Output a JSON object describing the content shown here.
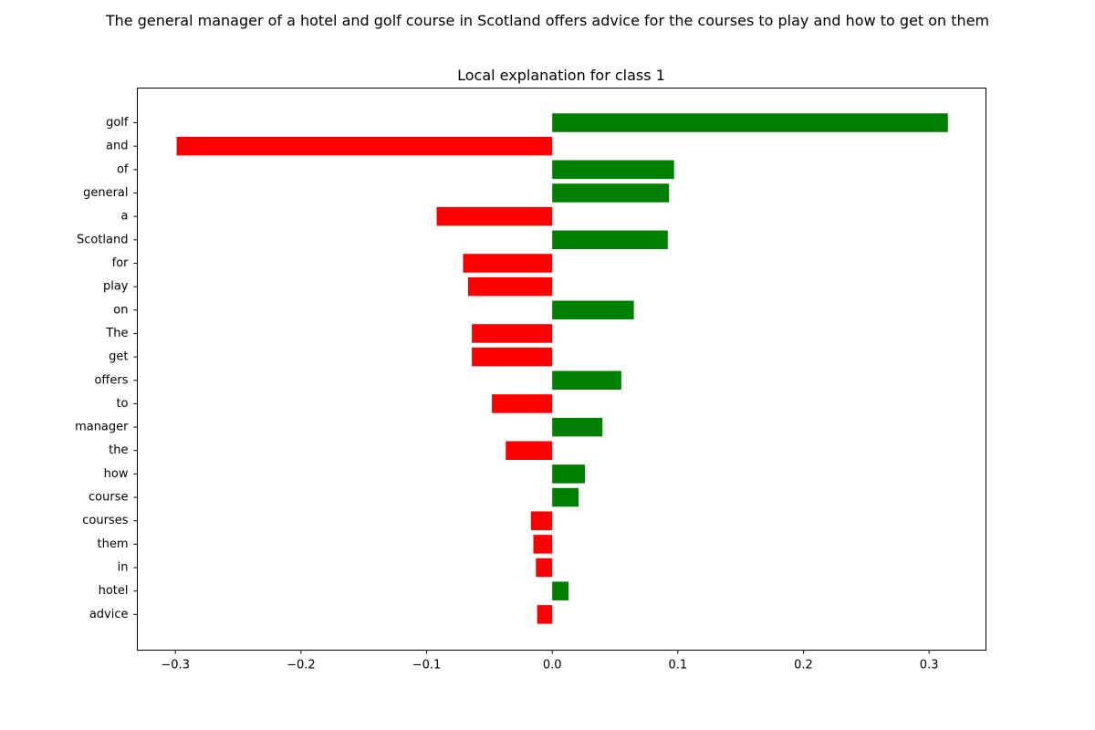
{
  "figure": {
    "suptitle": "The general manager of a hotel and golf course in Scotland offers advice for the courses to play and how to get on them"
  },
  "chart_data": {
    "type": "bar",
    "orientation": "horizontal",
    "title": "Local explanation for class 1",
    "xlabel": "",
    "ylabel": "",
    "categories": [
      "golf",
      "and",
      "of",
      "general",
      "a",
      "Scotland",
      "for",
      "play",
      "on",
      "The",
      "get",
      "offers",
      "to",
      "manager",
      "the",
      "how",
      "course",
      "courses",
      "them",
      "in",
      "hotel",
      "advice"
    ],
    "values": [
      0.315,
      -0.299,
      0.097,
      0.093,
      -0.092,
      0.092,
      -0.071,
      -0.067,
      0.065,
      -0.064,
      -0.064,
      0.055,
      -0.048,
      0.04,
      -0.037,
      0.026,
      0.021,
      -0.017,
      -0.015,
      -0.013,
      0.013,
      -0.012
    ],
    "xlim": [
      -0.3303,
      0.3453
    ],
    "xticks": [
      -0.3,
      -0.2,
      -0.1,
      0.0,
      0.1,
      0.2,
      0.3
    ],
    "xtick_labels": [
      "−0.3",
      "−0.2",
      "−0.1",
      "0.0",
      "0.1",
      "0.2",
      "0.3"
    ],
    "positive_color": "#008000",
    "negative_color": "#ff0000",
    "grid": false,
    "legend": "none"
  }
}
